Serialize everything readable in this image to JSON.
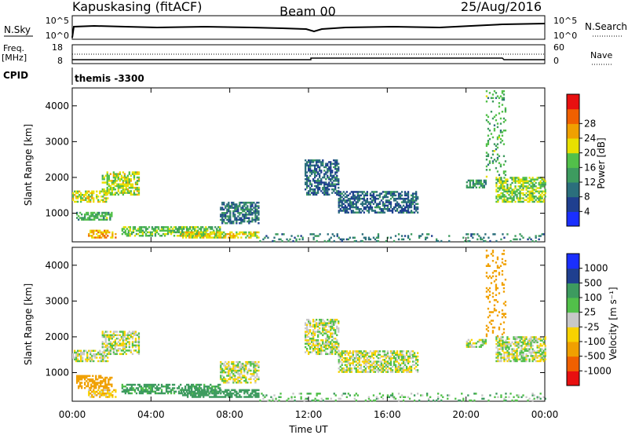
{
  "header": {
    "station": "Kapuskasing (fitACF)",
    "beam": "Beam 00",
    "date": "25/Aug/2016"
  },
  "panel_top": {
    "nsky_label": "N.Sky",
    "nsearch_label": "N.Search",
    "left_ticks": [
      "10^5",
      "10^0"
    ],
    "right_ticks": [
      "10^5",
      "10^0"
    ]
  },
  "panel_freq": {
    "freq_label": "Freq.",
    "freq_unit": "[MHz]",
    "nave_label": "Nave",
    "left_ticks": [
      "18",
      "8"
    ],
    "right_ticks": [
      "60",
      "0"
    ]
  },
  "cpid": {
    "label": "CPID",
    "value": "themis -3300"
  },
  "colors": {
    "power_scale": [
      "#1a2fff",
      "#1f3f8f",
      "#2b6f7c",
      "#3d9b5f",
      "#52c04a",
      "#e8e000",
      "#f0a000",
      "#f06000",
      "#e81010"
    ],
    "velocity_scale": [
      "#e81010",
      "#f06000",
      "#f0a000",
      "#f8d200",
      "#c8c8c8",
      "#52c04a",
      "#3d9b5f",
      "#1f3f8f",
      "#1a2fff"
    ]
  },
  "chart_data": [
    {
      "type": "heatmap",
      "quantity": "Power",
      "xlabel": "",
      "ylabel": "Slant Range [km]",
      "xlim": [
        0,
        24
      ],
      "ylim": [
        200,
        4500
      ],
      "x_ticks": [
        "00:00",
        "04:00",
        "08:00",
        "12:00",
        "16:00",
        "20:00",
        "00:00"
      ],
      "y_ticks": [
        1000,
        2000,
        3000,
        4000
      ],
      "colorbar": {
        "label": "Power [dB]",
        "range": [
          0,
          32
        ],
        "ticks": [
          "4",
          "8",
          "12",
          "16",
          "20",
          "24",
          "28"
        ]
      },
      "echo_regions": [
        {
          "t_start": 0.0,
          "t_end": 1.8,
          "r_start": 1300,
          "r_end": 1600,
          "mean_value": 19
        },
        {
          "t_start": 0.2,
          "t_end": 2.0,
          "r_start": 800,
          "r_end": 1000,
          "mean_value": 14
        },
        {
          "t_start": 1.5,
          "t_end": 3.4,
          "r_start": 1500,
          "r_end": 2150,
          "mean_value": 18
        },
        {
          "t_start": 0.8,
          "t_end": 2.2,
          "r_start": 300,
          "r_end": 500,
          "mean_value": 22
        },
        {
          "t_start": 2.5,
          "t_end": 7.5,
          "r_start": 350,
          "r_end": 600,
          "mean_value": 16
        },
        {
          "t_start": 5.5,
          "t_end": 9.5,
          "r_start": 300,
          "r_end": 450,
          "mean_value": 20
        },
        {
          "t_start": 7.5,
          "t_end": 9.5,
          "r_start": 700,
          "r_end": 1300,
          "mean_value": 9
        },
        {
          "t_start": 11.8,
          "t_end": 13.5,
          "r_start": 1500,
          "r_end": 2500,
          "mean_value": 8
        },
        {
          "t_start": 13.5,
          "t_end": 17.5,
          "r_start": 1000,
          "r_end": 1600,
          "mean_value": 8
        },
        {
          "t_start": 20.0,
          "t_end": 21.0,
          "r_start": 1700,
          "r_end": 1900,
          "mean_value": 12
        },
        {
          "t_start": 21.5,
          "t_end": 24.0,
          "r_start": 1300,
          "r_end": 2000,
          "mean_value": 17
        },
        {
          "t_start": 21.0,
          "t_end": 22.0,
          "r_start": 2000,
          "r_end": 4400,
          "mean_value": 14
        },
        {
          "t_start": 9.5,
          "t_end": 24.0,
          "r_start": 200,
          "r_end": 400,
          "mean_value": 10
        }
      ]
    },
    {
      "type": "heatmap",
      "quantity": "Velocity",
      "xlabel": "Time UT",
      "ylabel": "Slant Range [km]",
      "xlim": [
        0,
        24
      ],
      "ylim": [
        200,
        4500
      ],
      "x_ticks": [
        "00:00",
        "04:00",
        "08:00",
        "12:00",
        "16:00",
        "20:00",
        "00:00"
      ],
      "y_ticks": [
        1000,
        2000,
        3000,
        4000
      ],
      "colorbar": {
        "label": "Velocity [m s⁻¹]",
        "levels": [
          -2000,
          -1000,
          -500,
          -100,
          -25,
          25,
          100,
          500,
          1000,
          2000
        ],
        "ticks": [
          "-1000",
          "-500",
          "-100",
          "-25",
          "25",
          "100",
          "500",
          "1000"
        ]
      },
      "echo_regions": [
        {
          "t_start": 0.0,
          "t_end": 1.8,
          "r_start": 1300,
          "r_end": 1600,
          "mean_value": 0
        },
        {
          "t_start": 0.2,
          "t_end": 2.0,
          "r_start": 550,
          "r_end": 900,
          "mean_value": -250
        },
        {
          "t_start": 1.5,
          "t_end": 3.4,
          "r_start": 1500,
          "r_end": 2150,
          "mean_value": 0
        },
        {
          "t_start": 0.8,
          "t_end": 2.2,
          "r_start": 300,
          "r_end": 500,
          "mean_value": -80
        },
        {
          "t_start": 2.5,
          "t_end": 7.5,
          "r_start": 400,
          "r_end": 650,
          "mean_value": 150
        },
        {
          "t_start": 5.5,
          "t_end": 9.5,
          "r_start": 300,
          "r_end": 500,
          "mean_value": 300
        },
        {
          "t_start": 7.5,
          "t_end": 9.5,
          "r_start": 700,
          "r_end": 1300,
          "mean_value": 0
        },
        {
          "t_start": 11.8,
          "t_end": 13.5,
          "r_start": 1500,
          "r_end": 2500,
          "mean_value": 0
        },
        {
          "t_start": 13.5,
          "t_end": 17.5,
          "r_start": 1000,
          "r_end": 1600,
          "mean_value": 0
        },
        {
          "t_start": 20.0,
          "t_end": 21.0,
          "r_start": 1700,
          "r_end": 1900,
          "mean_value": 0
        },
        {
          "t_start": 21.5,
          "t_end": 24.0,
          "r_start": 1300,
          "r_end": 2000,
          "mean_value": 0
        },
        {
          "t_start": 21.0,
          "t_end": 22.0,
          "r_start": 2000,
          "r_end": 4400,
          "mean_value": -300
        },
        {
          "t_start": 9.5,
          "t_end": 24.0,
          "r_start": 200,
          "r_end": 400,
          "mean_value": 60
        }
      ]
    }
  ]
}
